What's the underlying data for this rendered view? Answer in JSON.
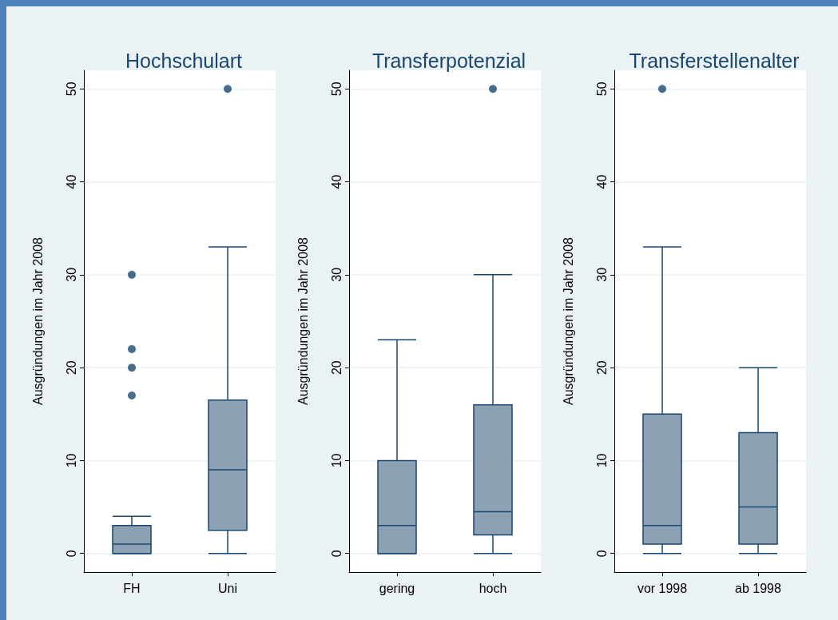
{
  "chart_data": [
    {
      "type": "box",
      "title": "Hochschulart",
      "ylabel": "Ausgründungen im Jahr 2008",
      "categories": [
        "FH",
        "Uni"
      ],
      "ylim": [
        -2,
        52
      ],
      "yticks": [
        0,
        10,
        20,
        30,
        40,
        50
      ],
      "grid": "y",
      "marker": "circle",
      "series": [
        {
          "color": "#8da1b5",
          "boxes": [
            {
              "low": 0,
              "q1": 0,
              "median": 1,
              "q3": 3,
              "high": 4,
              "outliers": [
                17,
                20,
                22,
                30
              ]
            },
            {
              "low": 0,
              "q1": 2.5,
              "median": 9,
              "q3": 16.5,
              "high": 33,
              "outliers": [
                50
              ]
            }
          ]
        }
      ]
    },
    {
      "type": "box",
      "title": "Transferpotenzial",
      "ylabel": "Ausgründungen im Jahr 2008",
      "categories": [
        "gering",
        "hoch"
      ],
      "ylim": [
        -2,
        52
      ],
      "yticks": [
        0,
        10,
        20,
        30,
        40,
        50
      ],
      "grid": "y",
      "marker": "circle",
      "series": [
        {
          "color": "#8da1b5",
          "boxes": [
            {
              "low": 0,
              "q1": 0,
              "median": 3,
              "q3": 10,
              "high": 23
            },
            {
              "low": 0,
              "q1": 2,
              "median": 4.5,
              "q3": 16,
              "high": 30,
              "outliers": [
                50
              ]
            }
          ]
        }
      ]
    },
    {
      "type": "box",
      "title": "Transferstellenalter",
      "ylabel": "Ausgründungen im Jahr 2008",
      "categories": [
        "vor 1998",
        "ab 1998"
      ],
      "ylim": [
        -2,
        52
      ],
      "yticks": [
        0,
        10,
        20,
        30,
        40,
        50
      ],
      "grid": "y",
      "marker": "circle",
      "series": [
        {
          "color": "#8da1b5",
          "boxes": [
            {
              "low": 0,
              "q1": 1,
              "median": 3,
              "q3": 15,
              "high": 33,
              "outliers": [
                50
              ]
            },
            {
              "low": 0,
              "q1": 1,
              "median": 5,
              "q3": 13,
              "high": 20
            }
          ]
        }
      ]
    }
  ]
}
